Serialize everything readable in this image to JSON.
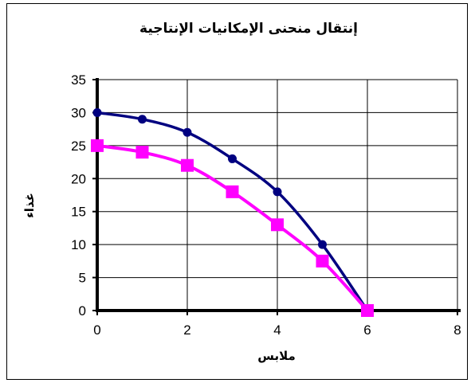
{
  "chart_data": {
    "type": "line",
    "title": "إنتقال منحنى الإمكانيات  الإنتاجية",
    "xlabel": "ملابس",
    "ylabel": "غذاء",
    "xlim": [
      0,
      8
    ],
    "ylim": [
      0,
      35
    ],
    "x_ticks": [
      "0",
      "2",
      "4",
      "6",
      "8"
    ],
    "y_ticks": [
      "0",
      "5",
      "10",
      "15",
      "20",
      "25",
      "30",
      "35"
    ],
    "grid": true,
    "legend": "none",
    "series": [
      {
        "x": [
          0,
          1,
          2,
          3,
          4,
          5,
          6
        ],
        "values": [
          30,
          29,
          27,
          23,
          18,
          10,
          0
        ],
        "color": "#000080",
        "marker": "circle"
      },
      {
        "x": [
          0,
          1,
          2,
          3,
          4,
          5,
          6
        ],
        "values": [
          25,
          24,
          22,
          18,
          13,
          7.5,
          0
        ],
        "color": "#FF00FF",
        "marker": "square"
      }
    ]
  }
}
